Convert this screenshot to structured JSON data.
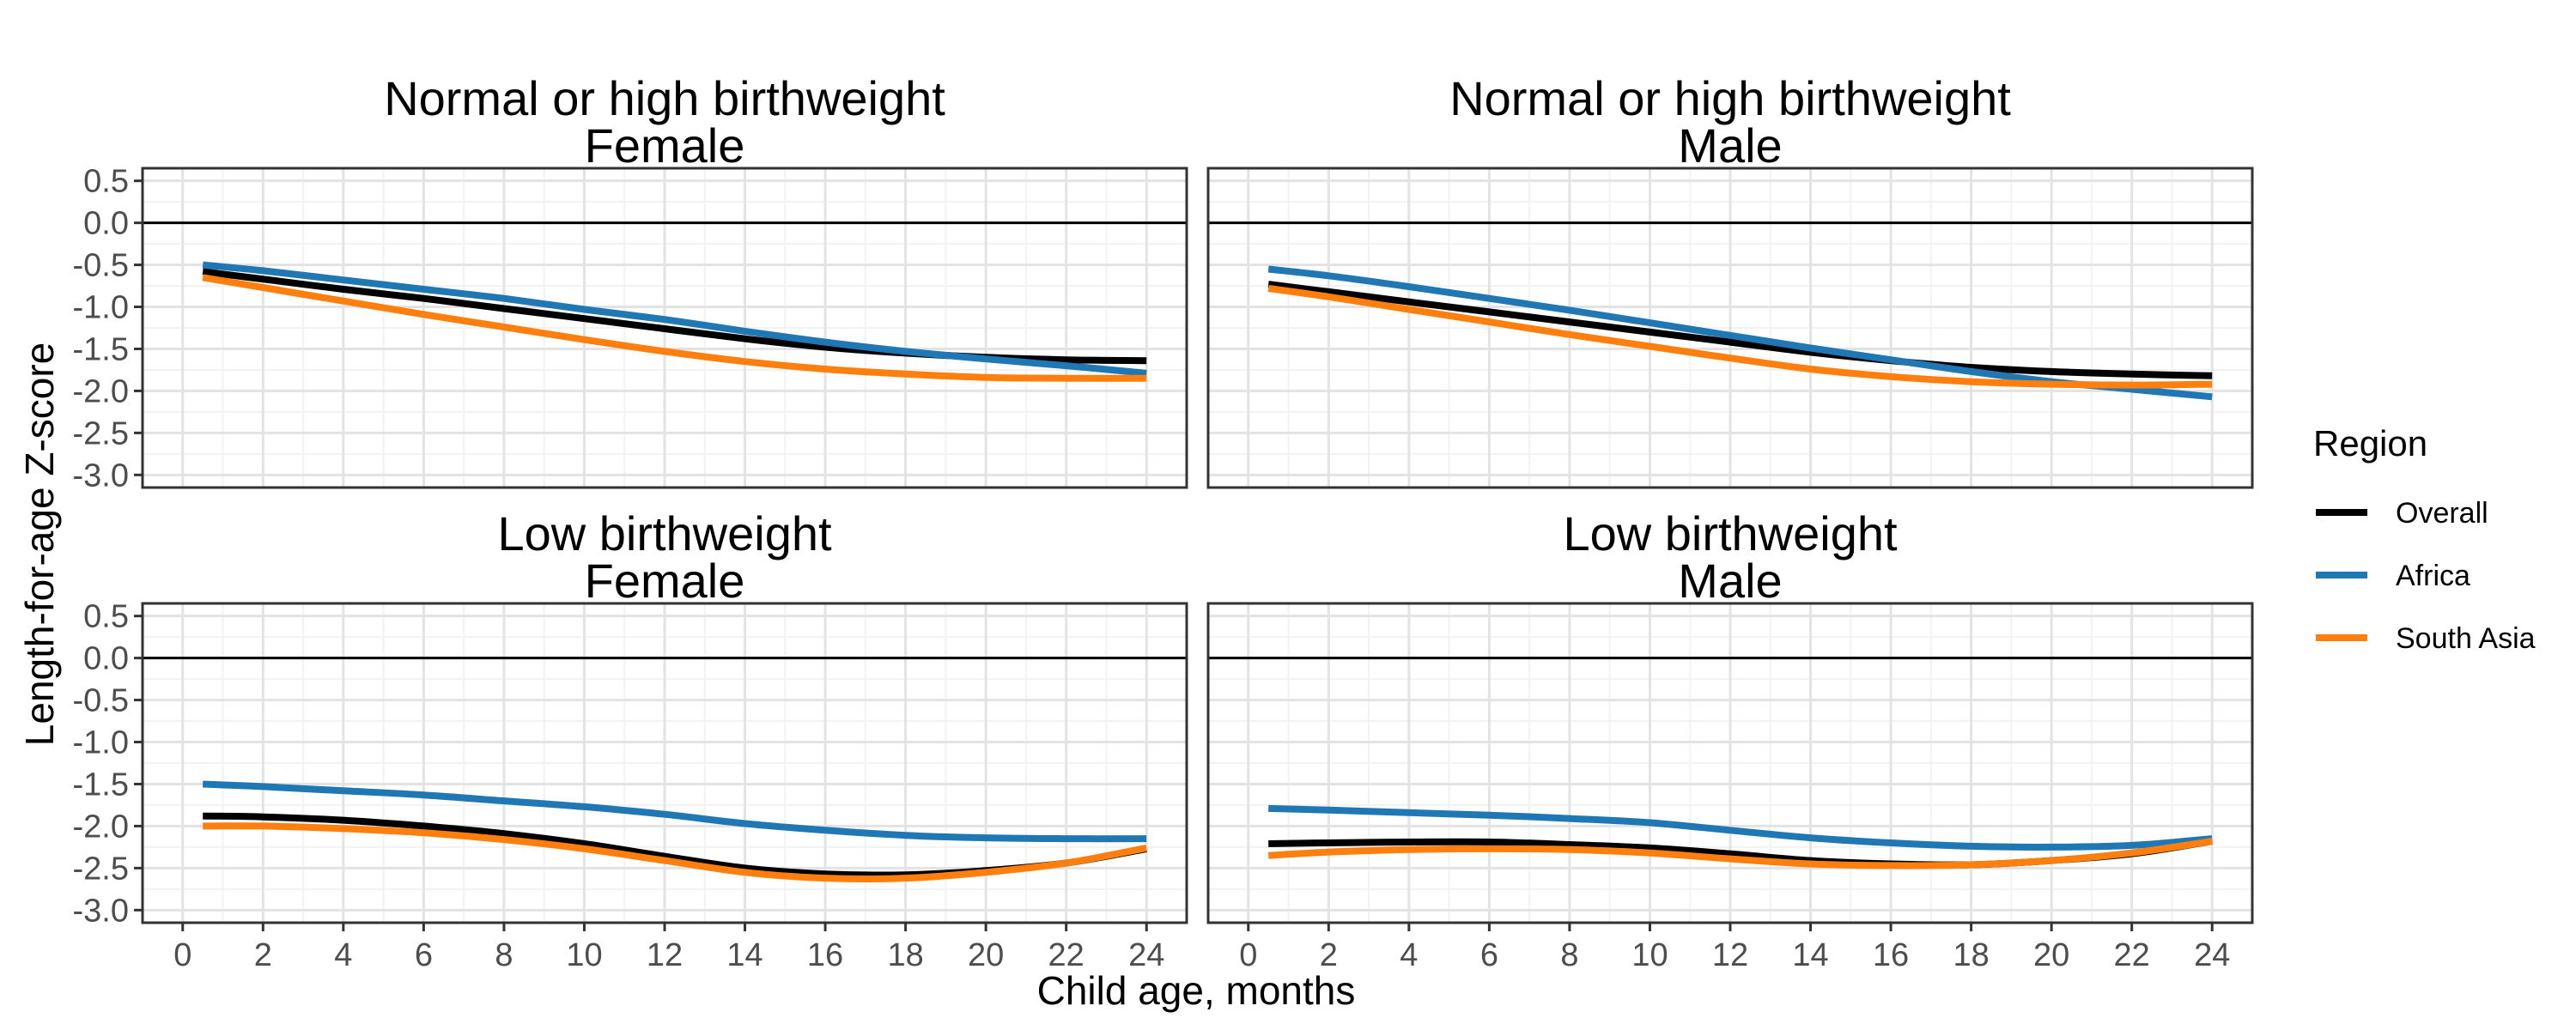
{
  "chart_data": {
    "type": "line",
    "facet_layout": "2x2",
    "xlabel": "Child age, months",
    "ylabel": "Length-for-age Z-score",
    "xlim": [
      -1,
      25
    ],
    "ylim": [
      -3.15,
      0.65
    ],
    "x_ticks": [
      0,
      2,
      4,
      6,
      8,
      10,
      12,
      14,
      16,
      18,
      20,
      22,
      24
    ],
    "y_ticks": [
      0.5,
      0.0,
      -0.5,
      -1.0,
      -1.5,
      -2.0,
      -2.5,
      -3.0
    ],
    "y_tick_labels": [
      "0.5",
      "0.0",
      "-0.5",
      "-1.0",
      "-1.5",
      "-2.0",
      "-2.5",
      "-3.0"
    ],
    "reference_line": 0,
    "grid": true,
    "x": [
      0.5,
      2,
      4,
      6,
      8,
      10,
      12,
      14,
      16,
      18,
      20,
      22,
      24
    ],
    "legend": {
      "title": "Region",
      "position": "right",
      "entries": [
        {
          "name": "Overall",
          "color": "#000000"
        },
        {
          "name": "Africa",
          "color": "#1f77b4"
        },
        {
          "name": "South Asia",
          "color": "#ff7f0e"
        }
      ]
    },
    "panels": [
      {
        "title_line1": "Normal or high birthweight",
        "title_line2": "Female",
        "series": [
          {
            "name": "Overall",
            "color": "#000000",
            "values": [
              -0.58,
              -0.67,
              -0.79,
              -0.9,
              -1.02,
              -1.14,
              -1.26,
              -1.38,
              -1.48,
              -1.55,
              -1.6,
              -1.63,
              -1.64
            ]
          },
          {
            "name": "Africa",
            "color": "#1f77b4",
            "values": [
              -0.5,
              -0.57,
              -0.68,
              -0.79,
              -0.9,
              -1.03,
              -1.15,
              -1.29,
              -1.42,
              -1.53,
              -1.62,
              -1.7,
              -1.79
            ]
          },
          {
            "name": "South Asia",
            "color": "#ff7f0e",
            "values": [
              -0.65,
              -0.77,
              -0.93,
              -1.09,
              -1.24,
              -1.39,
              -1.53,
              -1.65,
              -1.74,
              -1.8,
              -1.84,
              -1.85,
              -1.85
            ]
          }
        ]
      },
      {
        "title_line1": "Normal or high birthweight",
        "title_line2": "Male",
        "series": [
          {
            "name": "Overall",
            "color": "#000000",
            "values": [
              -0.73,
              -0.82,
              -0.94,
              -1.06,
              -1.18,
              -1.3,
              -1.42,
              -1.54,
              -1.64,
              -1.72,
              -1.77,
              -1.8,
              -1.82
            ]
          },
          {
            "name": "Africa",
            "color": "#1f77b4",
            "values": [
              -0.55,
              -0.63,
              -0.76,
              -0.9,
              -1.04,
              -1.19,
              -1.34,
              -1.49,
              -1.63,
              -1.77,
              -1.89,
              -1.98,
              -2.07
            ]
          },
          {
            "name": "South Asia",
            "color": "#ff7f0e",
            "values": [
              -0.78,
              -0.88,
              -1.03,
              -1.18,
              -1.33,
              -1.47,
              -1.61,
              -1.74,
              -1.83,
              -1.89,
              -1.92,
              -1.93,
              -1.92
            ]
          }
        ]
      },
      {
        "title_line1": "Low birthweight",
        "title_line2": "Female",
        "series": [
          {
            "name": "Overall",
            "color": "#000000",
            "values": [
              -1.88,
              -1.89,
              -1.93,
              -2.0,
              -2.09,
              -2.21,
              -2.36,
              -2.5,
              -2.57,
              -2.58,
              -2.53,
              -2.44,
              -2.27
            ]
          },
          {
            "name": "Africa",
            "color": "#1f77b4",
            "values": [
              -1.5,
              -1.53,
              -1.58,
              -1.63,
              -1.7,
              -1.77,
              -1.86,
              -1.97,
              -2.05,
              -2.11,
              -2.14,
              -2.15,
              -2.15
            ]
          },
          {
            "name": "South Asia",
            "color": "#ff7f0e",
            "values": [
              -2.0,
              -2.0,
              -2.03,
              -2.08,
              -2.16,
              -2.27,
              -2.41,
              -2.55,
              -2.62,
              -2.62,
              -2.55,
              -2.44,
              -2.26
            ]
          }
        ]
      },
      {
        "title_line1": "Low birthweight",
        "title_line2": "Male",
        "series": [
          {
            "name": "Overall",
            "color": "#000000",
            "values": [
              -2.21,
              -2.2,
              -2.19,
              -2.19,
              -2.22,
              -2.26,
              -2.33,
              -2.41,
              -2.45,
              -2.46,
              -2.41,
              -2.33,
              -2.18
            ]
          },
          {
            "name": "Africa",
            "color": "#1f77b4",
            "values": [
              -1.79,
              -1.81,
              -1.84,
              -1.87,
              -1.91,
              -1.96,
              -2.05,
              -2.14,
              -2.2,
              -2.24,
              -2.25,
              -2.23,
              -2.15
            ]
          },
          {
            "name": "South Asia",
            "color": "#ff7f0e",
            "values": [
              -2.35,
              -2.31,
              -2.28,
              -2.27,
              -2.28,
              -2.32,
              -2.39,
              -2.45,
              -2.47,
              -2.46,
              -2.41,
              -2.32,
              -2.18
            ]
          }
        ]
      }
    ]
  }
}
